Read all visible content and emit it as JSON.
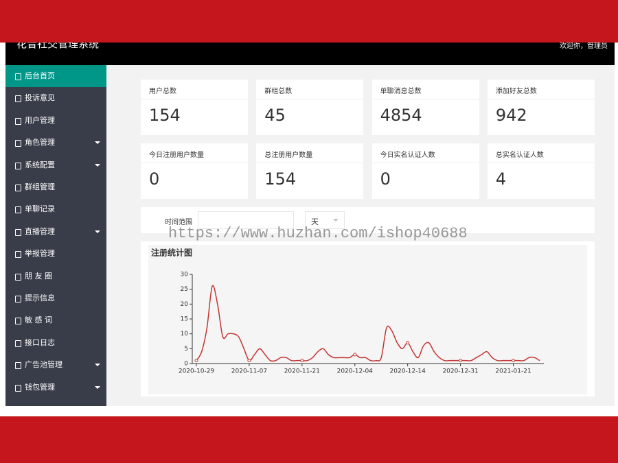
{
  "header": {
    "title": "花音社交管理系统",
    "user": "欢迎你，管理员"
  },
  "sidebar": {
    "items": [
      {
        "label": "后台首页",
        "active": true
      },
      {
        "label": "投诉意见"
      },
      {
        "label": "用户管理"
      },
      {
        "label": "角色管理",
        "submenu": true
      },
      {
        "label": "系统配置",
        "submenu": true
      },
      {
        "label": "群组管理"
      },
      {
        "label": "单聊记录"
      },
      {
        "label": "直播管理",
        "submenu": true
      },
      {
        "label": "举报管理"
      },
      {
        "label": "朋 友 圈"
      },
      {
        "label": "提示信息"
      },
      {
        "label": "敏 感 词"
      },
      {
        "label": "接口日志"
      },
      {
        "label": "广告池管理",
        "submenu": true
      },
      {
        "label": "钱包管理",
        "submenu": true
      }
    ]
  },
  "stats": [
    {
      "label": "用户总数",
      "value": 154
    },
    {
      "label": "群组总数",
      "value": 45
    },
    {
      "label": "单聊消息总数",
      "value": 4854
    },
    {
      "label": "添加好友总数",
      "value": 942
    },
    {
      "label": "今日注册用户数量",
      "value": 0
    },
    {
      "label": "总注册用户数量",
      "value": 154
    },
    {
      "label": "今日实名认证人数",
      "value": 0
    },
    {
      "label": "总实名认证人数",
      "value": 4
    }
  ],
  "filter": {
    "label": "时间范围",
    "unit": "天"
  },
  "watermark": "https://www.huzhan.com/ishop40688",
  "chart_data": {
    "type": "line",
    "title": "注册统计图",
    "color": "#c23531",
    "categories": [
      "2020-10-29",
      null,
      null,
      null,
      null,
      null,
      null,
      null,
      null,
      null,
      "2020-11-07",
      null,
      null,
      null,
      null,
      null,
      null,
      null,
      null,
      null,
      "2020-11-21",
      null,
      null,
      null,
      null,
      null,
      null,
      null,
      null,
      null,
      "2020-12-04",
      null,
      null,
      null,
      null,
      null,
      null,
      null,
      null,
      null,
      "2020-12-14",
      null,
      null,
      null,
      null,
      null,
      null,
      null,
      null,
      null,
      "2020-12-31",
      null,
      null,
      null,
      null,
      null,
      null,
      null,
      null,
      null,
      "2021-01-21",
      null,
      null,
      null,
      null,
      null
    ],
    "values": [
      1,
      4,
      12,
      26,
      20,
      9,
      10,
      10,
      9,
      5,
      1,
      3,
      5,
      3,
      1,
      1,
      2,
      2,
      1,
      1,
      1,
      1,
      2,
      4,
      5,
      3,
      2,
      2,
      2,
      2,
      3,
      2,
      2,
      1,
      1,
      2,
      12,
      11,
      7,
      5,
      7,
      4,
      2,
      6,
      7,
      4,
      2,
      1,
      1,
      1,
      1,
      1,
      1,
      2,
      3,
      4,
      2,
      1,
      1,
      1,
      1,
      1,
      1,
      2,
      2,
      1
    ],
    "ylim": [
      0,
      30
    ],
    "yticks": [
      0,
      5,
      10,
      15,
      20,
      25,
      30
    ]
  }
}
